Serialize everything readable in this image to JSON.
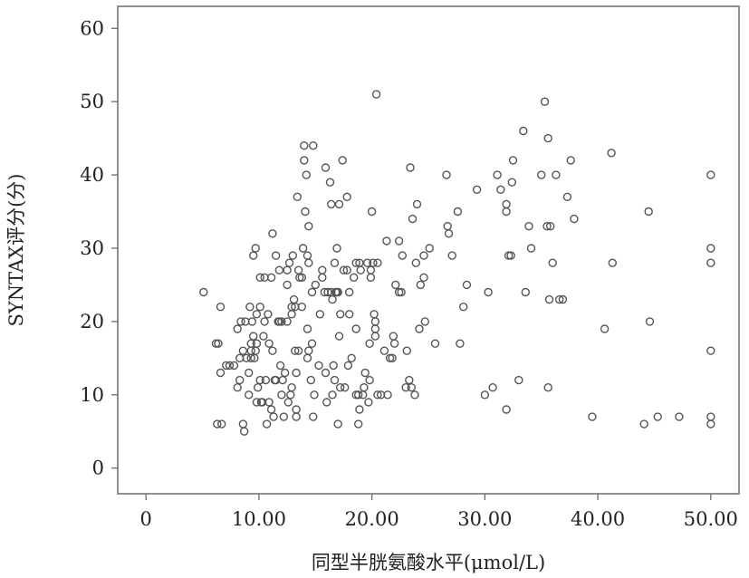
{
  "chart_data": {
    "type": "scatter",
    "title": "",
    "xlabel": "同型半胱氨酸水平(μmol/L)",
    "ylabel": "SYNTAX评分(分)",
    "xlim": [
      -2.5,
      52.5
    ],
    "ylim": [
      -3.5,
      63.0
    ],
    "x_ticks": [
      0,
      10,
      20,
      30,
      40,
      50
    ],
    "x_tick_labels": [
      "0",
      "10.00",
      "20.00",
      "30.00",
      "40.00",
      "50.00"
    ],
    "y_ticks": [
      0,
      10,
      20,
      30,
      40,
      50,
      60
    ],
    "y_tick_labels": [
      "0",
      "10",
      "20",
      "30",
      "40",
      "50",
      "60"
    ],
    "grid": false,
    "legend": "none",
    "marker_color": "#555555",
    "axis_color": "#6b6b6b",
    "points": [
      [
        5.1,
        24
      ],
      [
        6.2,
        17
      ],
      [
        6.4,
        17
      ],
      [
        6.6,
        22
      ],
      [
        6.6,
        13
      ],
      [
        6.3,
        6
      ],
      [
        6.7,
        6
      ],
      [
        7.1,
        14
      ],
      [
        7.4,
        14
      ],
      [
        7.8,
        14
      ],
      [
        8.1,
        11
      ],
      [
        8.3,
        12
      ],
      [
        8.4,
        20
      ],
      [
        8.1,
        19
      ],
      [
        8.6,
        16
      ],
      [
        8.3,
        15
      ],
      [
        8.6,
        6
      ],
      [
        8.7,
        5
      ],
      [
        8.8,
        20
      ],
      [
        8.9,
        15
      ],
      [
        9.1,
        13
      ],
      [
        9.1,
        10
      ],
      [
        9.2,
        22
      ],
      [
        9.3,
        17
      ],
      [
        9.3,
        16
      ],
      [
        9.3,
        15
      ],
      [
        9.4,
        20
      ],
      [
        9.5,
        18
      ],
      [
        9.6,
        15
      ],
      [
        9.7,
        16
      ],
      [
        9.5,
        29
      ],
      [
        9.7,
        30
      ],
      [
        9.8,
        9
      ],
      [
        9.9,
        11
      ],
      [
        9.8,
        17
      ],
      [
        9.8,
        21
      ],
      [
        10.1,
        26
      ],
      [
        10.1,
        22
      ],
      [
        10.1,
        12
      ],
      [
        10.2,
        9
      ],
      [
        10.3,
        9
      ],
      [
        10.4,
        18
      ],
      [
        10.5,
        20
      ],
      [
        10.5,
        26
      ],
      [
        10.6,
        12
      ],
      [
        10.7,
        6
      ],
      [
        10.8,
        21
      ],
      [
        10.9,
        17
      ],
      [
        10.9,
        9
      ],
      [
        11.1,
        8
      ],
      [
        11.1,
        26
      ],
      [
        11.2,
        32
      ],
      [
        11.2,
        16
      ],
      [
        11.3,
        7
      ],
      [
        11.4,
        12
      ],
      [
        11.5,
        29
      ],
      [
        11.5,
        12
      ],
      [
        11.7,
        20
      ],
      [
        11.9,
        14
      ],
      [
        11.8,
        27
      ],
      [
        11.8,
        20
      ],
      [
        12.0,
        20
      ],
      [
        12.0,
        10
      ],
      [
        12.1,
        12
      ],
      [
        12.2,
        7
      ],
      [
        12.3,
        13
      ],
      [
        12.5,
        27
      ],
      [
        12.5,
        20
      ],
      [
        12.5,
        25
      ],
      [
        12.7,
        28
      ],
      [
        12.6,
        9
      ],
      [
        12.8,
        10
      ],
      [
        12.9,
        11
      ],
      [
        12.9,
        22
      ],
      [
        12.9,
        21
      ],
      [
        13.0,
        29
      ],
      [
        13.1,
        23
      ],
      [
        13.2,
        22
      ],
      [
        13.2,
        16
      ],
      [
        13.3,
        7
      ],
      [
        13.3,
        13
      ],
      [
        13.3,
        8
      ],
      [
        13.4,
        37
      ],
      [
        13.5,
        27
      ],
      [
        13.5,
        16
      ],
      [
        13.6,
        26
      ],
      [
        13.8,
        26
      ],
      [
        13.8,
        22
      ],
      [
        13.9,
        30
      ],
      [
        14.0,
        44
      ],
      [
        14.0,
        42
      ],
      [
        14.2,
        40
      ],
      [
        14.1,
        35
      ],
      [
        14.3,
        29
      ],
      [
        14.3,
        19
      ],
      [
        14.3,
        15
      ],
      [
        14.4,
        33
      ],
      [
        14.4,
        28
      ],
      [
        14.4,
        16
      ],
      [
        14.6,
        12
      ],
      [
        14.7,
        24
      ],
      [
        14.7,
        17
      ],
      [
        14.8,
        7
      ],
      [
        14.8,
        44
      ],
      [
        14.9,
        10
      ],
      [
        15.0,
        25
      ],
      [
        15.3,
        14
      ],
      [
        15.4,
        21
      ],
      [
        15.6,
        27
      ],
      [
        15.6,
        26
      ],
      [
        15.8,
        24
      ],
      [
        15.9,
        13
      ],
      [
        15.9,
        41
      ],
      [
        16.0,
        9
      ],
      [
        16.1,
        24
      ],
      [
        16.3,
        39
      ],
      [
        16.4,
        36
      ],
      [
        16.4,
        24
      ],
      [
        16.5,
        23
      ],
      [
        16.5,
        10
      ],
      [
        16.6,
        14
      ],
      [
        16.7,
        28
      ],
      [
        16.7,
        12
      ],
      [
        16.8,
        24
      ],
      [
        16.9,
        30
      ],
      [
        16.9,
        24
      ],
      [
        17.0,
        6
      ],
      [
        17.0,
        24
      ],
      [
        17.1,
        18
      ],
      [
        17.1,
        36
      ],
      [
        17.2,
        21
      ],
      [
        17.2,
        11
      ],
      [
        17.4,
        42
      ],
      [
        17.5,
        27
      ],
      [
        17.6,
        11
      ],
      [
        17.8,
        37
      ],
      [
        17.8,
        27
      ],
      [
        17.9,
        14
      ],
      [
        18.0,
        21
      ],
      [
        18.0,
        24
      ],
      [
        18.2,
        15
      ],
      [
        18.4,
        26
      ],
      [
        18.6,
        10
      ],
      [
        18.6,
        28
      ],
      [
        18.6,
        19
      ],
      [
        18.8,
        6
      ],
      [
        18.8,
        10
      ],
      [
        18.9,
        8
      ],
      [
        18.9,
        28
      ],
      [
        19.0,
        27
      ],
      [
        19.2,
        10
      ],
      [
        19.3,
        11
      ],
      [
        19.4,
        13
      ],
      [
        19.6,
        28
      ],
      [
        19.7,
        9
      ],
      [
        19.8,
        17
      ],
      [
        19.8,
        12
      ],
      [
        19.9,
        26
      ],
      [
        19.9,
        27
      ],
      [
        20.0,
        35
      ],
      [
        20.1,
        28
      ],
      [
        20.2,
        21
      ],
      [
        20.3,
        20
      ],
      [
        20.3,
        19
      ],
      [
        20.3,
        18
      ],
      [
        20.4,
        51
      ],
      [
        20.5,
        28
      ],
      [
        20.5,
        10
      ],
      [
        20.8,
        10
      ],
      [
        21.1,
        16
      ],
      [
        21.3,
        31
      ],
      [
        21.4,
        10
      ],
      [
        21.6,
        15
      ],
      [
        21.8,
        15
      ],
      [
        21.9,
        18
      ],
      [
        22.0,
        17
      ],
      [
        22.1,
        25
      ],
      [
        22.4,
        24
      ],
      [
        22.4,
        31
      ],
      [
        22.6,
        24
      ],
      [
        22.7,
        29
      ],
      [
        23.0,
        11
      ],
      [
        23.1,
        16
      ],
      [
        23.3,
        12
      ],
      [
        23.4,
        41
      ],
      [
        23.5,
        11
      ],
      [
        23.6,
        34
      ],
      [
        23.8,
        10
      ],
      [
        23.9,
        28
      ],
      [
        24.0,
        36
      ],
      [
        24.2,
        19
      ],
      [
        24.3,
        25
      ],
      [
        24.6,
        29
      ],
      [
        24.6,
        26
      ],
      [
        24.7,
        20
      ],
      [
        25.1,
        30
      ],
      [
        25.6,
        17
      ],
      [
        26.6,
        40
      ],
      [
        26.7,
        33
      ],
      [
        26.8,
        32
      ],
      [
        27.1,
        29
      ],
      [
        27.6,
        35
      ],
      [
        27.8,
        17
      ],
      [
        28.1,
        22
      ],
      [
        28.4,
        25
      ],
      [
        29.3,
        38
      ],
      [
        30.0,
        10
      ],
      [
        30.3,
        24
      ],
      [
        30.7,
        11
      ],
      [
        31.1,
        40
      ],
      [
        31.4,
        38
      ],
      [
        31.9,
        35
      ],
      [
        31.9,
        36
      ],
      [
        31.9,
        8
      ],
      [
        32.1,
        29
      ],
      [
        32.3,
        29
      ],
      [
        32.4,
        39
      ],
      [
        32.5,
        42
      ],
      [
        33.0,
        12
      ],
      [
        33.4,
        46
      ],
      [
        33.6,
        24
      ],
      [
        33.9,
        33
      ],
      [
        34.1,
        30
      ],
      [
        35.0,
        40
      ],
      [
        35.3,
        50
      ],
      [
        35.5,
        33
      ],
      [
        35.6,
        45
      ],
      [
        35.6,
        11
      ],
      [
        35.7,
        23
      ],
      [
        35.8,
        33
      ],
      [
        36.0,
        28
      ],
      [
        36.3,
        40
      ],
      [
        36.6,
        23
      ],
      [
        36.9,
        23
      ],
      [
        37.3,
        37
      ],
      [
        37.6,
        42
      ],
      [
        37.9,
        34
      ],
      [
        39.5,
        7
      ],
      [
        40.6,
        19
      ],
      [
        41.2,
        43
      ],
      [
        41.3,
        28
      ],
      [
        44.1,
        6
      ],
      [
        44.5,
        35
      ],
      [
        44.6,
        20
      ],
      [
        45.3,
        7
      ],
      [
        47.2,
        7
      ],
      [
        50.0,
        40
      ],
      [
        50.0,
        30
      ],
      [
        50.0,
        28
      ],
      [
        50.0,
        16
      ],
      [
        50.0,
        7
      ],
      [
        50.0,
        6
      ]
    ]
  }
}
